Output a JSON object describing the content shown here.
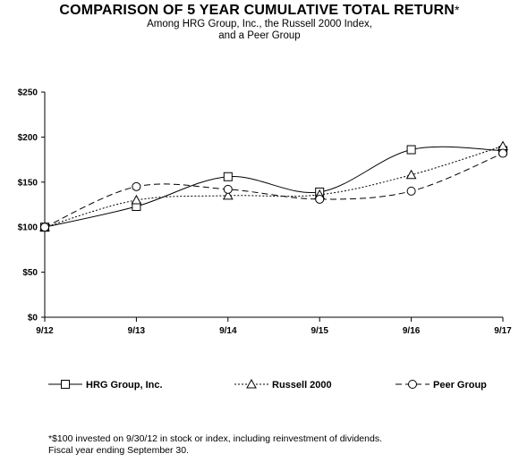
{
  "chart_data": {
    "type": "line",
    "title": "COMPARISON OF 5 YEAR CUMULATIVE TOTAL RETURN",
    "title_mark": "*",
    "subtitle": [
      "Among HRG Group, Inc., the Russell 2000 Index,",
      "and a Peer Group"
    ],
    "categories": [
      "9/12",
      "9/13",
      "9/14",
      "9/15",
      "9/16",
      "9/17"
    ],
    "y_ticks": [
      "$0",
      "$50",
      "$100",
      "$150",
      "$200",
      "$250"
    ],
    "ylim": [
      0,
      250
    ],
    "grid": false,
    "legend_placement": "bottom",
    "series": [
      {
        "name": "HRG Group, Inc.",
        "values": [
          100,
          123,
          156,
          139,
          186,
          185
        ],
        "marker": "square",
        "dash": "solid"
      },
      {
        "name": "Russell 2000",
        "values": [
          100,
          130,
          135,
          136,
          158,
          190
        ],
        "marker": "triangle",
        "dash": "dotted"
      },
      {
        "name": "Peer Group",
        "values": [
          100,
          145,
          142,
          131,
          140,
          182
        ],
        "marker": "circle",
        "dash": "dashed"
      }
    ]
  },
  "footnote": [
    "*$100 invested on 9/30/12 in stock or index, including reinvestment of dividends.",
    "Fiscal year ending September 30."
  ]
}
